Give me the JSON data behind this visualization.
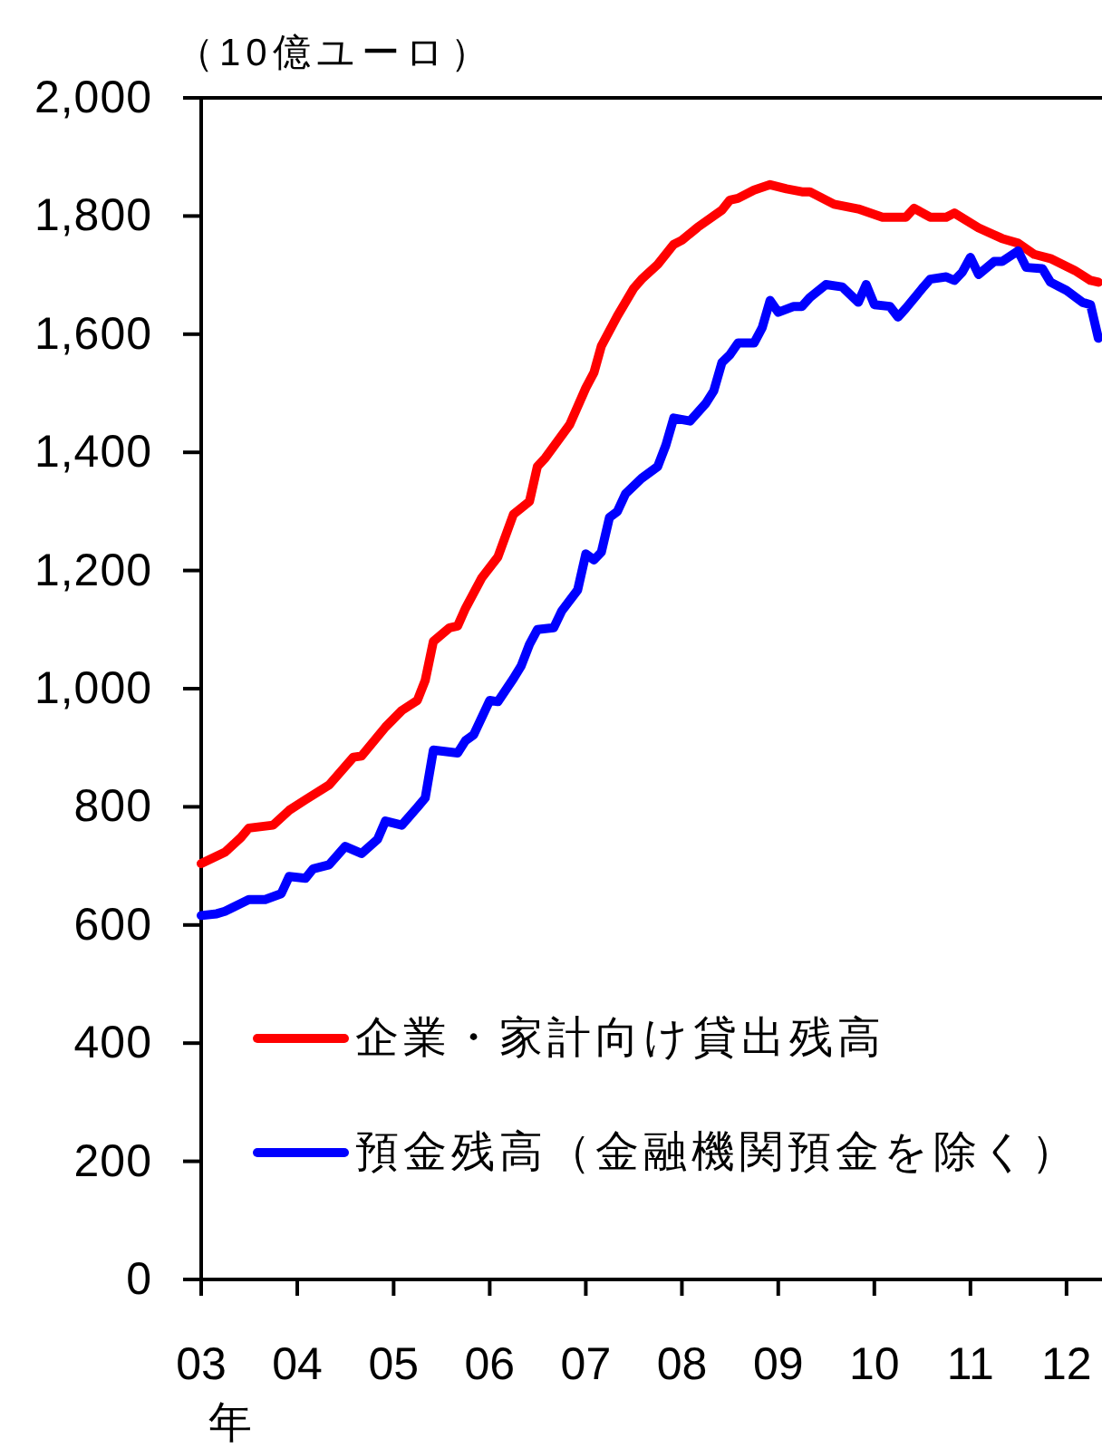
{
  "chart_data": {
    "type": "line",
    "ylabel": "（10億ユーロ）",
    "xlabel": "年",
    "xlim": [
      "2003-01",
      "2012-05"
    ],
    "xticks": [
      {
        "value": "2003-01",
        "label": "03"
      },
      {
        "value": "2004-01",
        "label": "04"
      },
      {
        "value": "2005-01",
        "label": "05"
      },
      {
        "value": "2006-01",
        "label": "06"
      },
      {
        "value": "2007-01",
        "label": "07"
      },
      {
        "value": "2008-01",
        "label": "08"
      },
      {
        "value": "2009-01",
        "label": "09"
      },
      {
        "value": "2010-01",
        "label": "10"
      },
      {
        "value": "2011-01",
        "label": "11"
      },
      {
        "value": "2012-01",
        "label": "12"
      }
    ],
    "ylim": [
      0,
      2000
    ],
    "yticks": [
      0,
      200,
      400,
      600,
      800,
      {
        "value": 1000,
        "label": "1,000"
      },
      {
        "value": 1200,
        "label": "1,200"
      },
      {
        "value": 1400,
        "label": "1,400"
      },
      {
        "value": 1600,
        "label": "1,600"
      },
      {
        "value": 1800,
        "label": "1,800"
      },
      {
        "value": 2000,
        "label": "2,000"
      }
    ],
    "legend": "bottom left",
    "series": [
      {
        "name": "企業・家計向け貸出残高",
        "color": "#ff0000",
        "x": [
          "2003-01",
          "2003-04",
          "2003-06",
          "2003-07",
          "2003-10",
          "2003-12",
          "2004-02",
          "2004-05",
          "2004-08",
          "2004-09",
          "2004-12",
          "2005-02",
          "2005-04",
          "2005-05",
          "2005-06",
          "2005-08",
          "2005-09",
          "2005-10",
          "2005-12",
          "2006-02",
          "2006-04",
          "2006-06",
          "2006-07",
          "2006-08",
          "2006-11",
          "2007-01",
          "2007-02",
          "2007-03",
          "2007-05",
          "2007-07",
          "2007-08",
          "2007-10",
          "2007-12",
          "2008-01",
          "2008-03",
          "2008-06",
          "2008-07",
          "2008-08",
          "2008-10",
          "2008-12",
          "2009-02",
          "2009-04",
          "2009-05",
          "2009-08",
          "2009-11",
          "2010-02",
          "2010-05",
          "2010-06",
          "2010-08",
          "2010-10",
          "2010-11",
          "2011-02",
          "2011-05",
          "2011-07",
          "2011-09",
          "2011-11",
          "2012-02",
          "2012-04",
          "2012-05"
        ],
        "values": [
          704,
          723,
          748,
          764,
          769,
          794,
          812,
          837,
          884,
          886,
          935,
          963,
          980,
          1014,
          1080,
          1103,
          1106,
          1136,
          1187,
          1223,
          1295,
          1317,
          1376,
          1391,
          1447,
          1509,
          1535,
          1580,
          1631,
          1677,
          1693,
          1718,
          1752,
          1759,
          1781,
          1810,
          1827,
          1830,
          1844,
          1853,
          1846,
          1841,
          1841,
          1820,
          1812,
          1798,
          1798,
          1813,
          1798,
          1798,
          1805,
          1780,
          1762,
          1754,
          1735,
          1728,
          1708,
          1691,
          1688
        ]
      },
      {
        "name": "預金残高（金融機関預金を除く）",
        "color": "#0000ff",
        "x": [
          "2003-01",
          "2003-03",
          "2003-04",
          "2003-07",
          "2003-09",
          "2003-11",
          "2003-12",
          "2004-02",
          "2004-03",
          "2004-05",
          "2004-07",
          "2004-09",
          "2004-11",
          "2004-12",
          "2005-02",
          "2005-04",
          "2005-05",
          "2005-06",
          "2005-09",
          "2005-10",
          "2005-11",
          "2006-01",
          "2006-02",
          "2006-04",
          "2006-05",
          "2006-06",
          "2006-07",
          "2006-09",
          "2006-10",
          "2006-12",
          "2007-01",
          "2007-02",
          "2007-03",
          "2007-04",
          "2007-05",
          "2007-06",
          "2007-08",
          "2007-10",
          "2007-11",
          "2007-12",
          "2008-02",
          "2008-04",
          "2008-05",
          "2008-06",
          "2008-07",
          "2008-08",
          "2008-10",
          "2008-11",
          "2008-12",
          "2009-01",
          "2009-03",
          "2009-04",
          "2009-05",
          "2009-07",
          "2009-09",
          "2009-11",
          "2009-12",
          "2010-01",
          "2010-03",
          "2010-04",
          "2010-05",
          "2010-07",
          "2010-08",
          "2010-10",
          "2010-11",
          "2010-12",
          "2011-01",
          "2011-02",
          "2011-04",
          "2011-05",
          "2011-07",
          "2011-08",
          "2011-10",
          "2011-11",
          "2012-01",
          "2012-03",
          "2012-04",
          "2012-05"
        ],
        "values": [
          616,
          619,
          623,
          643,
          643,
          653,
          682,
          679,
          695,
          702,
          733,
          721,
          745,
          776,
          769,
          799,
          815,
          896,
          891,
          912,
          922,
          980,
          978,
          1017,
          1039,
          1075,
          1100,
          1103,
          1131,
          1167,
          1228,
          1218,
          1231,
          1290,
          1300,
          1330,
          1356,
          1376,
          1412,
          1458,
          1453,
          1483,
          1504,
          1552,
          1565,
          1585,
          1585,
          1611,
          1657,
          1637,
          1647,
          1647,
          1662,
          1684,
          1680,
          1654,
          1684,
          1650,
          1647,
          1629,
          1644,
          1677,
          1693,
          1697,
          1691,
          1705,
          1730,
          1701,
          1723,
          1723,
          1741,
          1713,
          1711,
          1688,
          1674,
          1654,
          1650,
          1593
        ]
      }
    ]
  }
}
